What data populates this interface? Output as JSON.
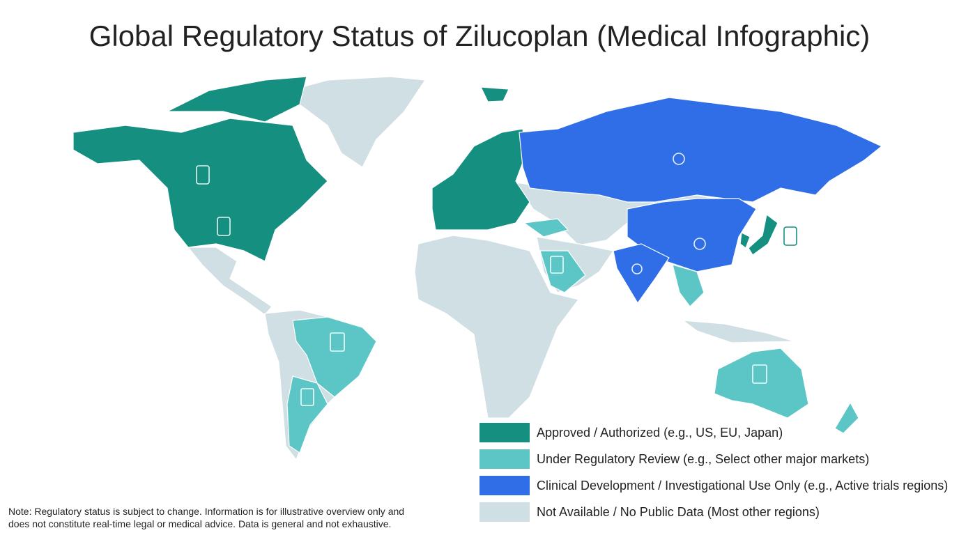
{
  "title": "Global Regulatory Status of Zilucoplan (Medical Infographic)",
  "legend": {
    "items": [
      {
        "label": "Approved / Authorized (e.g., US, EU, Japan)",
        "color": "#148f80"
      },
      {
        "label": "Under Regulatory Review (e.g., Select other major markets)",
        "color": "#5cc6c6"
      },
      {
        "label": "Clinical Development / Investigational Use Only (e.g., Active trials regions)",
        "color": "#2f6ee6"
      },
      {
        "label": "Not Available / No Public Data (Most other regions)",
        "color": "#cfdfe3"
      }
    ]
  },
  "note": {
    "lines": [
      "Note: Regulatory status is subject to change. Information is for illustrative overview only and",
      "does not constitute real-time legal or medical advice. Data is general and not exhaustive."
    ]
  }
}
